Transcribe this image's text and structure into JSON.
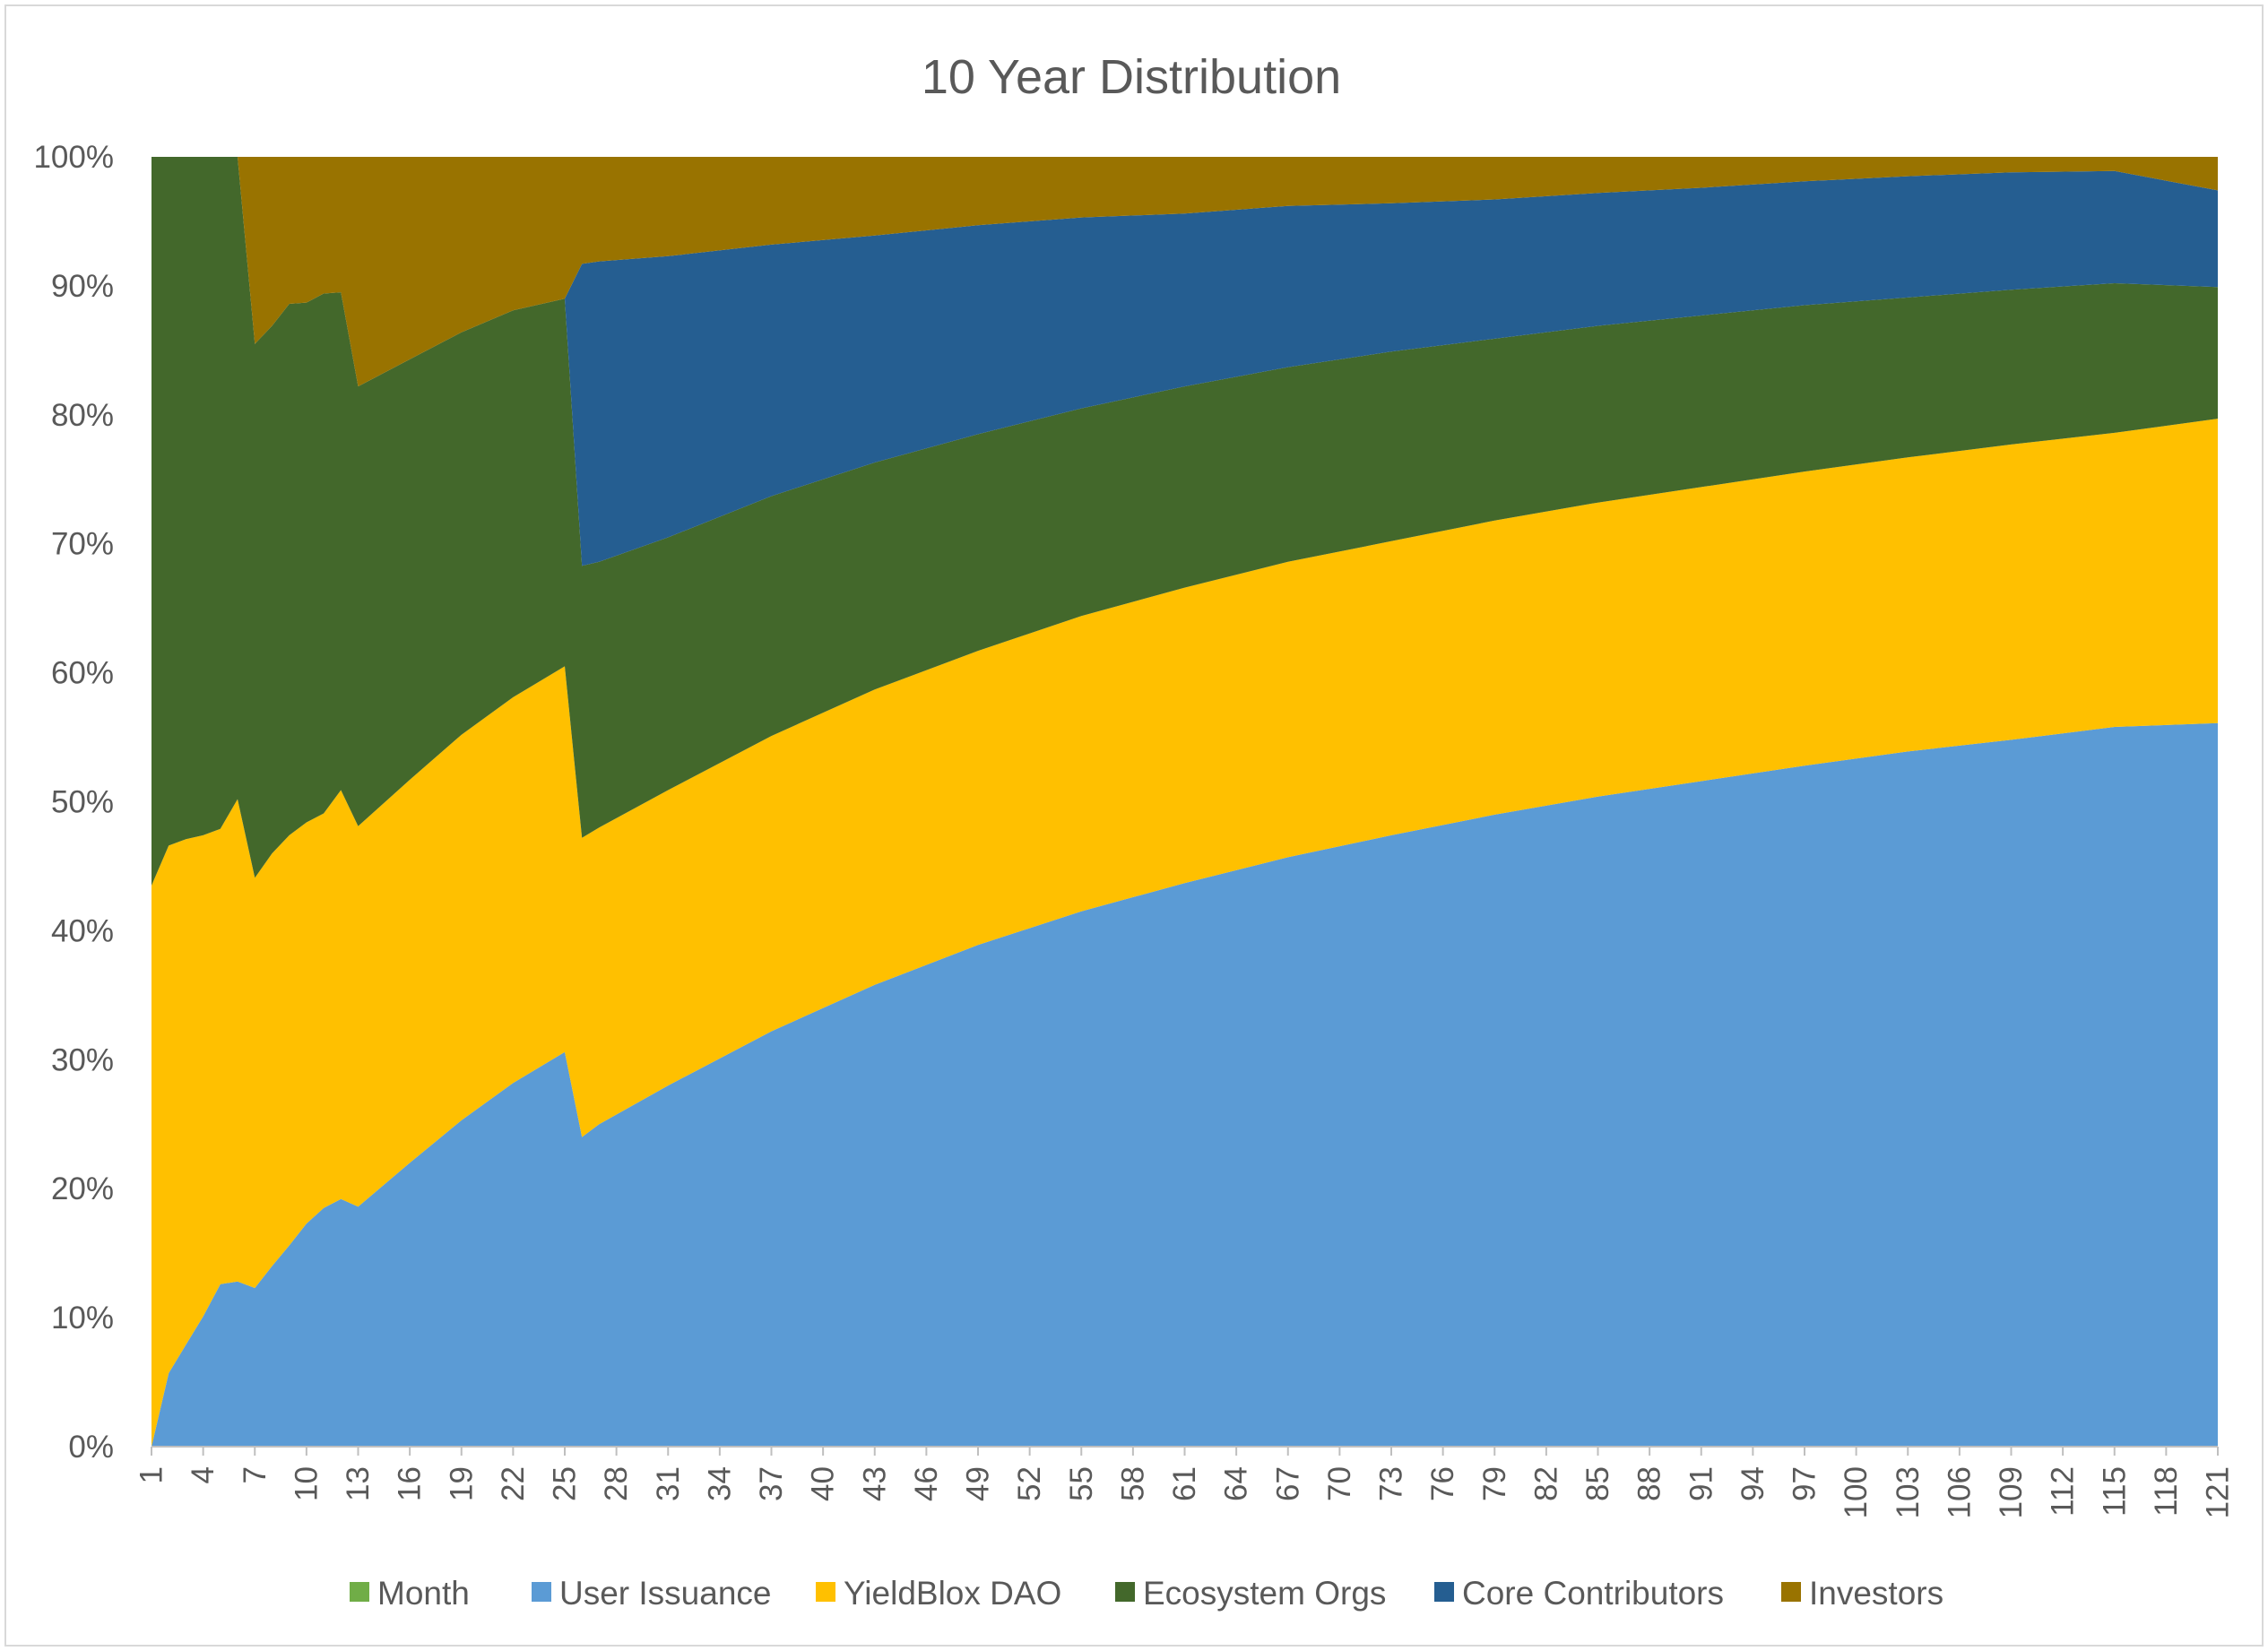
{
  "chart_data": {
    "type": "area",
    "stacking": "percent",
    "title": "10 Year Distribution",
    "xlabel": "",
    "ylabel": "",
    "ylim": [
      0,
      100
    ],
    "y_ticks": [
      "0%",
      "10%",
      "20%",
      "30%",
      "40%",
      "50%",
      "60%",
      "70%",
      "80%",
      "90%",
      "100%"
    ],
    "x_range": [
      1,
      121
    ],
    "x_ticks": [
      1,
      4,
      7,
      10,
      13,
      16,
      19,
      22,
      25,
      28,
      31,
      34,
      37,
      40,
      43,
      46,
      49,
      52,
      55,
      58,
      61,
      64,
      67,
      70,
      73,
      76,
      79,
      82,
      85,
      88,
      91,
      94,
      97,
      100,
      103,
      106,
      109,
      112,
      115,
      118,
      121
    ],
    "grid": false,
    "legend_position": "bottom",
    "x": [
      1,
      2,
      3,
      4,
      5,
      6,
      7,
      8,
      9,
      10,
      11,
      12,
      13,
      16,
      19,
      22,
      25,
      26,
      27,
      31,
      37,
      43,
      49,
      55,
      61,
      67,
      73,
      79,
      85,
      91,
      97,
      103,
      109,
      115,
      121
    ],
    "series": [
      {
        "name": "Month",
        "color": "#70ad47",
        "values": [
          0,
          0,
          0,
          0,
          0,
          0,
          0,
          0,
          0,
          0,
          0,
          0,
          0,
          0,
          0,
          0,
          0,
          0,
          0,
          0,
          0,
          0,
          0,
          0,
          0,
          0,
          0,
          0,
          0,
          0,
          0,
          0,
          0,
          0,
          0
        ]
      },
      {
        "name": "User Issuance",
        "color": "#5b9bd5",
        "values": [
          0,
          5.7,
          7.9,
          10.1,
          12.6,
          12.8,
          12.3,
          14,
          15.6,
          17.3,
          18.5,
          19.2,
          18.6,
          22,
          25.3,
          28.2,
          30.6,
          24,
          25,
          28,
          32.2,
          35.8,
          38.9,
          41.5,
          43.7,
          45.7,
          47.4,
          49,
          50.4,
          51.6,
          52.8,
          53.9,
          54.8,
          55.8,
          56.1
        ]
      },
      {
        "name": "YieldBlox DAO",
        "color": "#ffc000",
        "values": [
          43.5,
          40.9,
          39.2,
          37.3,
          35.3,
          37.4,
          31.8,
          32,
          31.8,
          31.1,
          30.6,
          31.7,
          29.5,
          29.7,
          29.9,
          29.9,
          29.9,
          23.2,
          23,
          22.9,
          22.9,
          22.9,
          22.8,
          22.9,
          22.9,
          22.9,
          22.8,
          22.8,
          22.8,
          22.8,
          22.8,
          22.8,
          22.9,
          22.8,
          23.6
        ]
      },
      {
        "name": "Ecosystem Orgs",
        "color": "#43682b",
        "values": [
          56.5,
          53.4,
          52.9,
          52.6,
          52.1,
          49.8,
          41.4,
          40.9,
          41.2,
          40.3,
          40.3,
          38.6,
          34.1,
          32.6,
          31.2,
          30,
          28.5,
          21.1,
          20.6,
          19.6,
          18.6,
          17.6,
          16.8,
          16.1,
          15.6,
          15.1,
          14.7,
          14.1,
          13.7,
          13.3,
          12.9,
          12.4,
          12,
          11.6,
          10.2
        ]
      },
      {
        "name": "Core Contributors",
        "color": "#255e91",
        "values": [
          0,
          0,
          0,
          0,
          0,
          0,
          0,
          0,
          0,
          0,
          0,
          0,
          0,
          0,
          0,
          0,
          0,
          23.4,
          23.3,
          21.8,
          19.5,
          17.6,
          16.2,
          14.8,
          13.4,
          12.5,
          11.5,
          10.8,
          10.3,
          9.9,
          9.6,
          9.4,
          9.1,
          8.7,
          7.5
        ]
      },
      {
        "name": "Investors",
        "color": "#997300",
        "values": [
          0,
          0,
          0,
          0,
          0,
          0,
          14.5,
          13.1,
          11.4,
          11.3,
          10.6,
          10.5,
          17.8,
          15.7,
          13.6,
          11.9,
          11,
          8.3,
          8.1,
          7.7,
          6.8,
          6.1,
          5.3,
          4.7,
          4.4,
          3.8,
          3.6,
          3.3,
          2.8,
          2.4,
          1.9,
          1.5,
          1.2,
          1.1,
          2.6
        ]
      }
    ]
  }
}
